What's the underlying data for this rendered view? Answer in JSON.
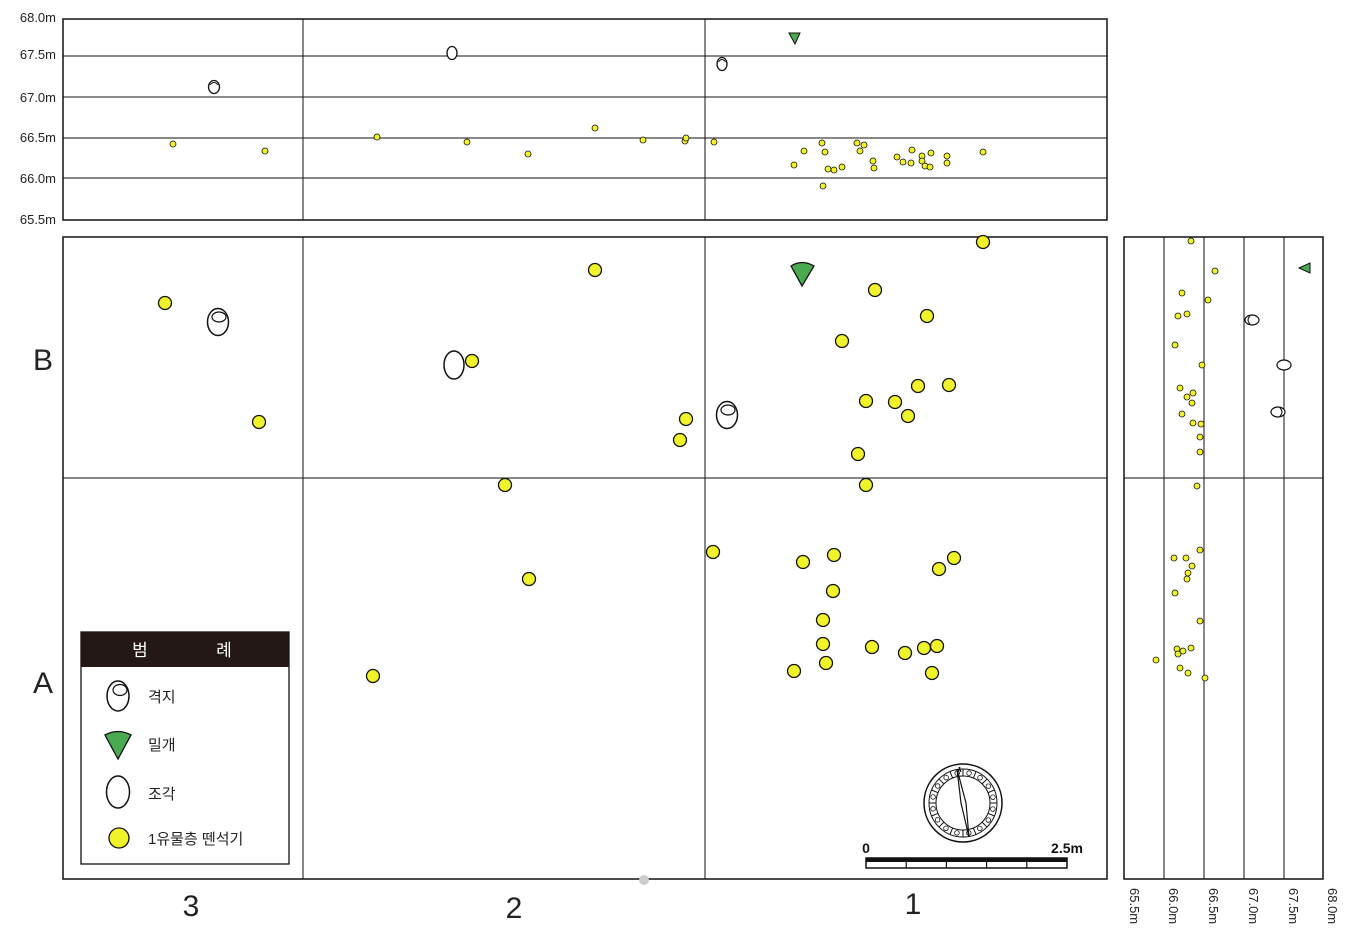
{
  "colors": {
    "flake": "#f0f22a",
    "point": "#4aaa50",
    "line": "#111111",
    "legend_header": "#231815"
  },
  "icons": {
    "core": "core-icon",
    "point": "point-icon",
    "chunk": "chunk-icon",
    "flake": "flake-icon",
    "compass": "compass-icon"
  },
  "grid": {
    "columns": [
      "3",
      "2",
      "1"
    ],
    "rows": [
      "B",
      "A"
    ]
  },
  "elevation_ticks": [
    "68.0m",
    "67.5m",
    "67.0m",
    "66.5m",
    "66.0m",
    "65.5m"
  ],
  "side_ticks": [
    "65.5m",
    "66.0m",
    "66.5m",
    "67.0m",
    "67.5m",
    "68.0m"
  ],
  "legend": {
    "title_left": "범",
    "title_right": "례",
    "items": [
      {
        "label": "격지",
        "icon": "core-icon"
      },
      {
        "label": "밀개",
        "icon": "point-icon"
      },
      {
        "label": "조각",
        "icon": "chunk-icon"
      },
      {
        "label": "1유물층 뗀석기",
        "icon": "flake-icon"
      }
    ]
  },
  "scale": {
    "start": "0",
    "end": "2.5m"
  }
}
